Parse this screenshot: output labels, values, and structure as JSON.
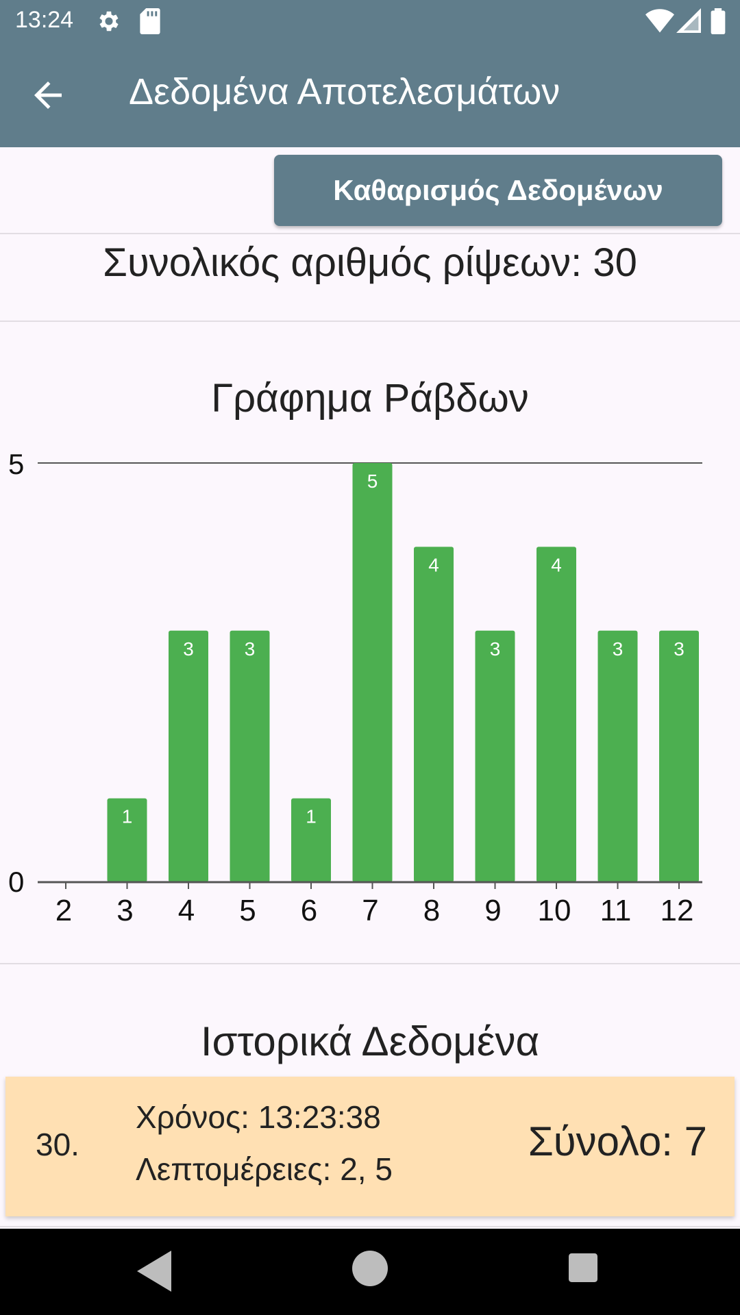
{
  "status_bar": {
    "time": "13:24",
    "icons": [
      "gear-icon",
      "sd-card-icon",
      "wifi-icon",
      "signal-icon",
      "battery-icon"
    ]
  },
  "app_bar": {
    "title": "Δεδομένα Αποτελεσμάτων",
    "back_icon": "arrow-back-icon"
  },
  "actions": {
    "clear_label": "Καθαρισμός Δεδομένων"
  },
  "summary": {
    "total_rolls_text": "Συνολικός αριθμός ρίψεων: 30"
  },
  "chart_section": {
    "title": "Γράφημα Ράβδων"
  },
  "chart_data": {
    "type": "bar",
    "title": "Γράφημα Ράβδων",
    "categories": [
      "2",
      "3",
      "4",
      "5",
      "6",
      "7",
      "8",
      "9",
      "10",
      "11",
      "12"
    ],
    "values": [
      0,
      1,
      3,
      3,
      1,
      5,
      4,
      3,
      4,
      3,
      3
    ],
    "ylim": [
      0,
      5
    ],
    "yticks": [
      "0",
      "5"
    ],
    "bar_color": "#4caf50",
    "grid": false
  },
  "history": {
    "title": "Ιστορικά Δεδομένα",
    "entries": [
      {
        "index": "30.",
        "time": "Χρόνος: 13:23:38",
        "details": "Λεπτομέρειες: 2, 5",
        "sum": "Σύνολο: 7"
      }
    ]
  },
  "colors": {
    "primary": "#607d8b",
    "card": "#ffe0b3",
    "background": "#fcf7fd"
  }
}
